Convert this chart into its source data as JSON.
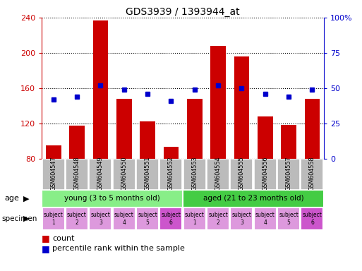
{
  "title": "GDS3939 / 1393944_at",
  "categories": [
    "GSM604547",
    "GSM604548",
    "GSM604549",
    "GSM604550",
    "GSM604551",
    "GSM604552",
    "GSM604553",
    "GSM604554",
    "GSM604555",
    "GSM604556",
    "GSM604557",
    "GSM604558"
  ],
  "counts": [
    95,
    117,
    237,
    148,
    122,
    93,
    148,
    208,
    196,
    128,
    118,
    148
  ],
  "percentiles": [
    42,
    44,
    52,
    49,
    46,
    41,
    49,
    52,
    50,
    46,
    44,
    49
  ],
  "ylim_left": [
    80,
    240
  ],
  "ylim_right": [
    0,
    100
  ],
  "yticks_left": [
    80,
    120,
    160,
    200,
    240
  ],
  "yticks_right": [
    0,
    25,
    50,
    75,
    100
  ],
  "bar_color": "#cc0000",
  "dot_color": "#0000cc",
  "age_groups": [
    {
      "label": "young (3 to 5 months old)",
      "start": 0,
      "end": 6,
      "color": "#88ee88"
    },
    {
      "label": "aged (21 to 23 months old)",
      "start": 6,
      "end": 12,
      "color": "#44cc44"
    }
  ],
  "specimens": [
    "subject\n1",
    "subject\n2",
    "subject\n3",
    "subject\n4",
    "subject\n5",
    "subject\n6",
    "subject\n1",
    "subject\n2",
    "subject\n3",
    "subject\n4",
    "subject\n5",
    "subject\n6"
  ],
  "specimen_colors": [
    "#dd99dd",
    "#dd99dd",
    "#dd99dd",
    "#dd99dd",
    "#dd99dd",
    "#cc55cc",
    "#dd99dd",
    "#dd99dd",
    "#dd99dd",
    "#dd99dd",
    "#dd99dd",
    "#cc55cc"
  ],
  "xticklabel_bg": "#bbbbbb",
  "left_axis_color": "#cc0000",
  "right_axis_color": "#0000cc",
  "grid_color": "#000000",
  "bg_color": "#ffffff"
}
